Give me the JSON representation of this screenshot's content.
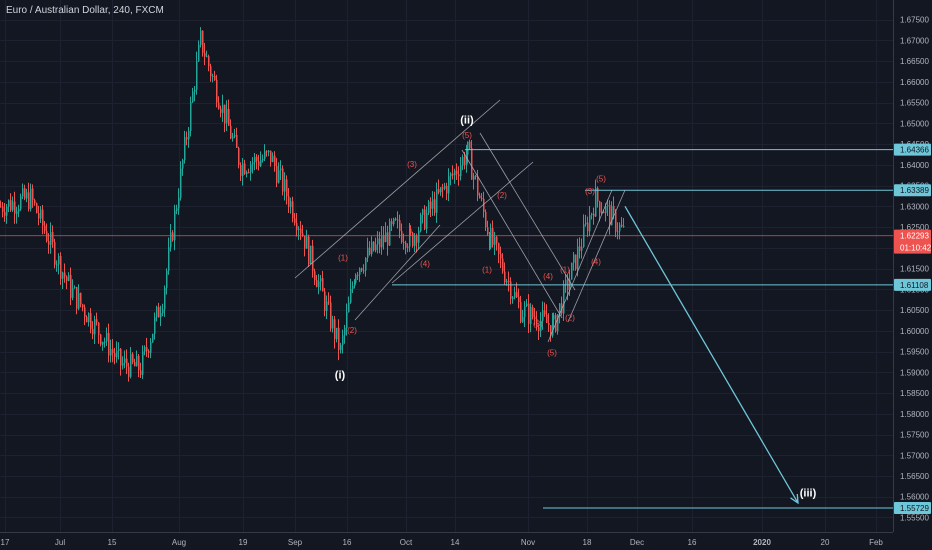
{
  "header": {
    "symbol_title": "Euro / Australian Dollar, 240, FXCM"
  },
  "chart_data": {
    "type": "candlestick",
    "title": "Euro / Australian Dollar, 240, FXCM",
    "ylim": [
      1.5515,
      1.6795
    ],
    "y_ticks": [
      "1.67500",
      "1.67000",
      "1.66500",
      "1.66000",
      "1.65500",
      "1.65000",
      "1.64500",
      "1.64000",
      "1.63500",
      "1.63000",
      "1.62500",
      "1.62000",
      "1.61500",
      "1.61000",
      "1.60500",
      "1.60000",
      "1.59500",
      "1.59000",
      "1.58500",
      "1.58000",
      "1.57500",
      "1.57000",
      "1.56500",
      "1.56000",
      "1.55500"
    ],
    "x_ticks": [
      "17",
      "Jul",
      "15",
      "Aug",
      "19",
      "Sep",
      "16",
      "Oct",
      "14",
      "Nov",
      "18",
      "Dec",
      "16",
      "2020",
      "20",
      "Feb"
    ],
    "price_path": [
      [
        "17",
        1.63
      ],
      [
        "17",
        1.632
      ],
      [
        "Jul",
        1.61
      ],
      [
        "15",
        1.592
      ],
      [
        "15",
        1.591
      ],
      [
        "15",
        1.608
      ],
      [
        "Aug",
        1.67
      ],
      [
        "19",
        1.64
      ],
      [
        "19",
        1.642
      ],
      [
        "Sep",
        1.625
      ],
      [
        "16",
        1.595
      ],
      [
        "16",
        1.615
      ],
      [
        "Oct",
        1.625
      ],
      [
        "Oct",
        1.622
      ],
      [
        "14",
        1.643
      ],
      [
        "14",
        1.622
      ],
      [
        "Nov",
        1.605
      ],
      [
        "Nov",
        1.601
      ],
      [
        "18",
        1.632
      ],
      [
        "Dec",
        1.623
      ]
    ],
    "horizontal_levels": [
      {
        "price": 1.64366,
        "label": "1.64366"
      },
      {
        "price": 1.63389,
        "label": "1.63389"
      },
      {
        "price": 1.61108,
        "label": "1.61108"
      },
      {
        "price": 1.55729,
        "label": "1.55729"
      }
    ],
    "current_price": {
      "price": 1.62293,
      "label": "1.62293",
      "countdown": "01:10:42"
    },
    "wave_labels": [
      {
        "text": "(i)",
        "x": "16",
        "y": 1.5885,
        "style": "major"
      },
      {
        "text": "(ii)",
        "x": "14",
        "y": 1.65,
        "style": "major"
      },
      {
        "text": "(iii)",
        "x": "20",
        "y": 1.56,
        "style": "major"
      },
      {
        "text": "(1)",
        "x": "16",
        "y": 1.617,
        "style": "minor"
      },
      {
        "text": "(2)",
        "x": "16",
        "y": 1.5995,
        "style": "minor"
      },
      {
        "text": "(3)",
        "x": "Oct",
        "y": 1.6395,
        "style": "minor"
      },
      {
        "text": "(4)",
        "x": "Oct",
        "y": 1.6155,
        "style": "minor"
      },
      {
        "text": "(5)",
        "x": "14",
        "y": 1.6465,
        "style": "minor"
      },
      {
        "text": "(1)",
        "x": "14",
        "y": 1.614,
        "style": "minor"
      },
      {
        "text": "(2)",
        "x": "14",
        "y": 1.632,
        "style": "minor"
      },
      {
        "text": "(3)",
        "x": "Nov",
        "y": 1.601,
        "style": "minor"
      },
      {
        "text": "(4)",
        "x": "Nov",
        "y": 1.6125,
        "style": "minor"
      },
      {
        "text": "(5)",
        "x": "Nov",
        "y": 1.594,
        "style": "minor"
      },
      {
        "text": "(1)",
        "x": "Nov",
        "y": 1.614,
        "style": "minor"
      },
      {
        "text": "(2)",
        "x": "Nov",
        "y": 1.6025,
        "style": "minor"
      },
      {
        "text": "(3)",
        "x": "18",
        "y": 1.633,
        "style": "minor"
      },
      {
        "text": "(4)",
        "x": "18",
        "y": 1.616,
        "style": "minor"
      },
      {
        "text": "(5)",
        "x": "18",
        "y": 1.636,
        "style": "minor"
      }
    ],
    "projection_arrow": {
      "from": [
        "Dec",
        1.63
      ],
      "to": [
        "20",
        1.5585
      ]
    },
    "grid": true,
    "colors": {
      "background": "#131722",
      "up": "#26a69a",
      "down": "#ef5350",
      "level_line": "#6ec7d8",
      "current_line": "#ef5350",
      "channel": "#b2b5be",
      "wave_minor": "#ef5350",
      "wave_major": "#ffffff",
      "axis_text": "#b2b5be",
      "grid": "#1e2230"
    }
  }
}
